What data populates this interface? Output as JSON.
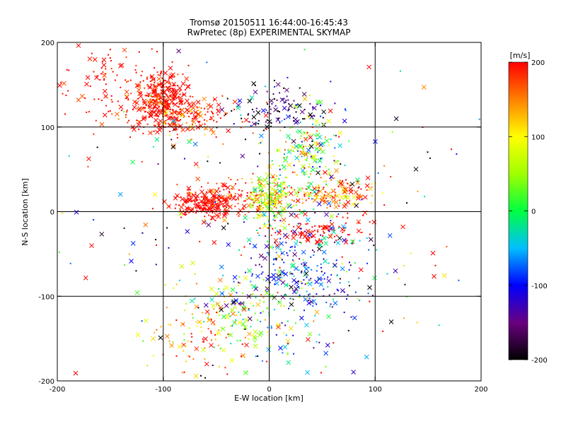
{
  "chart_data": {
    "type": "scatter",
    "title": "Tromsø 20150511 16:44:00-16:45:43",
    "subtitle": "RwPretec (8p) EXPERIMENTAL SKYMAP",
    "xlabel": "E-W location [km]",
    "ylabel": "N-S location [km]",
    "xlim": [
      -200,
      200
    ],
    "ylim": [
      -200,
      200
    ],
    "xticks": [
      "-200",
      "-100",
      "0",
      "100",
      "200"
    ],
    "yticks": [
      "-200",
      "-100",
      "0",
      "100",
      "200"
    ],
    "grid": true,
    "grid_values": [
      -100,
      0,
      100
    ],
    "colorbar": {
      "label": "[m/s]",
      "range": [
        -200,
        200
      ],
      "ticks": [
        "200",
        "100",
        "0",
        "-100",
        "-200"
      ],
      "colormap": "rainbow: black-purple-blue-cyan-green-yellow-red"
    },
    "markers": [
      "dot",
      "x"
    ],
    "clusters": [
      {
        "x": -100,
        "y": 135,
        "sx": 14,
        "sy": 18,
        "n": 340,
        "v": 200,
        "vs": 20
      },
      {
        "x": -80,
        "y": 110,
        "sx": 25,
        "sy": 12,
        "n": 150,
        "v": 185,
        "vs": 40
      },
      {
        "x": -150,
        "y": 150,
        "sx": 25,
        "sy": 28,
        "n": 90,
        "v": 200,
        "vs": 15
      },
      {
        "x": -60,
        "y": 8,
        "sx": 14,
        "sy": 8,
        "n": 190,
        "v": 200,
        "vs": 12
      },
      {
        "x": -30,
        "y": 18,
        "sx": 22,
        "sy": 10,
        "n": 110,
        "v": 185,
        "vs": 35
      },
      {
        "x": 0,
        "y": 15,
        "sx": 10,
        "sy": 14,
        "n": 180,
        "v": 60,
        "vs": 60
      },
      {
        "x": 60,
        "y": 22,
        "sx": 22,
        "sy": 10,
        "n": 140,
        "v": 160,
        "vs": 60
      },
      {
        "x": 45,
        "y": -22,
        "sx": 25,
        "sy": 8,
        "n": 100,
        "v": 200,
        "vs": 18
      },
      {
        "x": 35,
        "y": 70,
        "sx": 14,
        "sy": 22,
        "n": 170,
        "v": 40,
        "vs": 90
      },
      {
        "x": 10,
        "y": 120,
        "sx": 25,
        "sy": 15,
        "n": 110,
        "v": -170,
        "vs": 60
      },
      {
        "x": 30,
        "y": -70,
        "sx": 30,
        "sy": 35,
        "n": 300,
        "v": -100,
        "vs": 50
      },
      {
        "x": -20,
        "y": -120,
        "sx": 28,
        "sy": 28,
        "n": 160,
        "v": 50,
        "vs": 80
      },
      {
        "x": -70,
        "y": -150,
        "sx": 25,
        "sy": 22,
        "n": 90,
        "v": 160,
        "vs": 60
      },
      {
        "x": 0,
        "y": 0,
        "sx": 110,
        "sy": 110,
        "n": 260,
        "v": 0,
        "vs": 170
      }
    ]
  }
}
